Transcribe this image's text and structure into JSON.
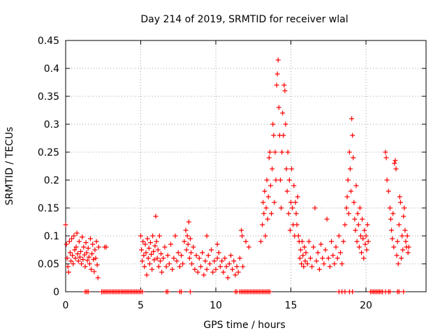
{
  "chart_data": {
    "type": "scatter",
    "title": "Day 214 of 2019, SRMTID for receiver wlal",
    "xlabel": "GPS time / hours",
    "ylabel": "SRMTID / TECUs",
    "xlim": [
      0,
      24
    ],
    "ylim": [
      0,
      0.45
    ],
    "grid": true,
    "marker": "+",
    "color": "#ff0000",
    "xticks": [
      0,
      5,
      10,
      15,
      20
    ],
    "xtick_labels": [
      "0",
      "5",
      "10",
      "15",
      "20"
    ],
    "yticks": [
      0,
      0.05,
      0.1,
      0.15,
      0.2,
      0.25,
      0.3,
      0.35,
      0.4,
      0.45
    ],
    "ytick_labels": [
      "0",
      "0.05",
      "0.1",
      "0.15",
      "0.2",
      "0.25",
      "0.3",
      "0.35",
      "0.4",
      "0.45"
    ],
    "series": [
      {
        "name": "SRMTID",
        "points": [
          [
            0.0,
            0.12
          ],
          [
            0.05,
            0.085
          ],
          [
            0.1,
            0.06
          ],
          [
            0.15,
            0.045
          ],
          [
            0.2,
            0.035
          ],
          [
            0.25,
            0.09
          ],
          [
            0.3,
            0.07
          ],
          [
            0.35,
            0.055
          ],
          [
            0.4,
            0.095
          ],
          [
            0.45,
            0.065
          ],
          [
            0.5,
            0.05
          ],
          [
            0.55,
            0.1
          ],
          [
            0.6,
            0.075
          ],
          [
            0.65,
            0.06
          ],
          [
            0.7,
            0.08
          ],
          [
            0.75,
            0.105
          ],
          [
            0.8,
            0.068
          ],
          [
            0.85,
            0.055
          ],
          [
            0.9,
            0.09
          ],
          [
            0.95,
            0.062
          ],
          [
            1.0,
            0.072
          ],
          [
            1.05,
            0.05
          ],
          [
            1.1,
            0.098
          ],
          [
            1.15,
            0.058
          ],
          [
            1.2,
            0.08
          ],
          [
            1.25,
            0.066
          ],
          [
            1.3,
            0.045
          ],
          [
            1.35,
            0.088
          ],
          [
            1.4,
            0.07
          ],
          [
            1.45,
            0.056
          ],
          [
            1.5,
            0.078
          ],
          [
            1.55,
            0.062
          ],
          [
            1.6,
            0.05
          ],
          [
            1.65,
            0.095
          ],
          [
            1.7,
            0.04
          ],
          [
            1.75,
            0.068
          ],
          [
            1.8,
            0.085
          ],
          [
            1.85,
            0.058
          ],
          [
            1.9,
            0.036
          ],
          [
            1.95,
            0.075
          ],
          [
            2.0,
            0.06
          ],
          [
            2.05,
            0.09
          ],
          [
            2.1,
            0.048
          ],
          [
            2.15,
            0.025
          ],
          [
            2.2,
            0.08
          ],
          [
            2.6,
            0.08
          ],
          [
            2.7,
            0.08
          ],
          [
            5.0,
            0.1
          ],
          [
            5.05,
            0.075
          ],
          [
            5.1,
            0.055
          ],
          [
            5.15,
            0.09
          ],
          [
            5.2,
            0.065
          ],
          [
            5.25,
            0.045
          ],
          [
            5.3,
            0.085
          ],
          [
            5.35,
            0.07
          ],
          [
            5.4,
            0.03
          ],
          [
            5.45,
            0.095
          ],
          [
            5.5,
            0.06
          ],
          [
            5.55,
            0.078
          ],
          [
            5.6,
            0.05
          ],
          [
            5.65,
            0.088
          ],
          [
            5.7,
            0.067
          ],
          [
            5.75,
            0.04
          ],
          [
            5.8,
            0.1
          ],
          [
            5.85,
            0.072
          ],
          [
            5.9,
            0.057
          ],
          [
            5.95,
            0.082
          ],
          [
            6.0,
            0.135
          ],
          [
            6.05,
            0.09
          ],
          [
            6.1,
            0.06
          ],
          [
            6.15,
            0.075
          ],
          [
            6.2,
            0.045
          ],
          [
            6.25,
            0.1
          ],
          [
            6.3,
            0.055
          ],
          [
            6.35,
            0.068
          ],
          [
            6.4,
            0.035
          ],
          [
            6.5,
            0.06
          ],
          [
            6.6,
            0.08
          ],
          [
            6.7,
            0.045
          ],
          [
            6.8,
            0.065
          ],
          [
            6.9,
            0.05
          ],
          [
            7.0,
            0.085
          ],
          [
            7.1,
            0.04
          ],
          [
            7.2,
            0.06
          ],
          [
            7.3,
            0.1
          ],
          [
            7.4,
            0.055
          ],
          [
            7.5,
            0.07
          ],
          [
            7.6,
            0.045
          ],
          [
            7.7,
            0.065
          ],
          [
            7.8,
            0.05
          ],
          [
            7.9,
            0.09
          ],
          [
            8.0,
            0.11
          ],
          [
            8.05,
            0.075
          ],
          [
            8.1,
            0.1
          ],
          [
            8.15,
            0.085
          ],
          [
            8.2,
            0.125
          ],
          [
            8.25,
            0.06
          ],
          [
            8.3,
            0.095
          ],
          [
            8.35,
            0.07
          ],
          [
            8.4,
            0.05
          ],
          [
            8.5,
            0.08
          ],
          [
            8.6,
            0.04
          ],
          [
            8.7,
            0.065
          ],
          [
            8.8,
            0.035
          ],
          [
            8.9,
            0.06
          ],
          [
            9.0,
            0.045
          ],
          [
            9.1,
            0.07
          ],
          [
            9.2,
            0.03
          ],
          [
            9.3,
            0.055
          ],
          [
            9.4,
            0.04
          ],
          [
            9.5,
            0.065
          ],
          [
            9.6,
            0.05
          ],
          [
            9.7,
            0.075
          ],
          [
            9.8,
            0.035
          ],
          [
            9.9,
            0.055
          ],
          [
            10.0,
            0.04
          ],
          [
            10.1,
            0.06
          ],
          [
            10.2,
            0.07
          ],
          [
            10.3,
            0.045
          ],
          [
            10.4,
            0.055
          ],
          [
            10.5,
            0.035
          ],
          [
            10.6,
            0.06
          ],
          [
            10.7,
            0.045
          ],
          [
            10.8,
            0.025
          ],
          [
            10.9,
            0.05
          ],
          [
            11.0,
            0.065
          ],
          [
            11.1,
            0.04
          ],
          [
            11.2,
            0.055
          ],
          [
            11.3,
            0.03
          ],
          [
            11.4,
            0.045
          ],
          [
            11.5,
            0.035
          ],
          [
            11.6,
            0.06
          ],
          [
            11.7,
            0.11
          ],
          [
            11.75,
            0.1
          ],
          [
            11.8,
            0.045
          ],
          [
            9.4,
            0.1
          ],
          [
            10.1,
            0.085
          ],
          [
            12.0,
            0.09
          ],
          [
            12.2,
            0.08
          ],
          [
            13.0,
            0.09
          ],
          [
            13.1,
            0.12
          ],
          [
            13.15,
            0.16
          ],
          [
            13.2,
            0.14
          ],
          [
            13.25,
            0.18
          ],
          [
            13.3,
            0.1
          ],
          [
            13.35,
            0.15
          ],
          [
            13.4,
            0.2
          ],
          [
            13.45,
            0.13
          ],
          [
            13.5,
            0.17
          ],
          [
            13.55,
            0.24
          ],
          [
            13.6,
            0.25
          ],
          [
            13.65,
            0.19
          ],
          [
            13.7,
            0.14
          ],
          [
            13.75,
            0.22
          ],
          [
            13.8,
            0.3
          ],
          [
            13.85,
            0.28
          ],
          [
            13.9,
            0.16
          ],
          [
            13.95,
            0.25
          ],
          [
            14.0,
            0.2
          ],
          [
            14.05,
            0.37
          ],
          [
            14.1,
            0.39
          ],
          [
            14.15,
            0.415
          ],
          [
            14.2,
            0.33
          ],
          [
            14.25,
            0.28
          ],
          [
            14.3,
            0.2
          ],
          [
            14.35,
            0.15
          ],
          [
            14.4,
            0.25
          ],
          [
            14.45,
            0.32
          ],
          [
            14.5,
            0.28
          ],
          [
            14.55,
            0.37
          ],
          [
            14.6,
            0.36
          ],
          [
            14.65,
            0.3
          ],
          [
            14.7,
            0.22
          ],
          [
            14.75,
            0.18
          ],
          [
            14.8,
            0.25
          ],
          [
            14.85,
            0.14
          ],
          [
            14.9,
            0.2
          ],
          [
            14.95,
            0.11
          ],
          [
            15.0,
            0.16
          ],
          [
            15.05,
            0.22
          ],
          [
            15.1,
            0.15
          ],
          [
            15.15,
            0.12
          ],
          [
            15.2,
            0.19
          ],
          [
            15.25,
            0.1
          ],
          [
            15.3,
            0.16
          ],
          [
            15.35,
            0.14
          ],
          [
            15.4,
            0.12
          ],
          [
            15.45,
            0.17
          ],
          [
            15.5,
            0.1
          ],
          [
            15.55,
            0.09
          ],
          [
            15.6,
            0.06
          ],
          [
            15.65,
            0.075
          ],
          [
            15.7,
            0.05
          ],
          [
            15.75,
            0.09
          ],
          [
            15.8,
            0.065
          ],
          [
            15.85,
            0.045
          ],
          [
            15.9,
            0.08
          ],
          [
            15.95,
            0.055
          ],
          [
            16.0,
            0.07
          ],
          [
            16.1,
            0.05
          ],
          [
            16.2,
            0.09
          ],
          [
            16.3,
            0.06
          ],
          [
            16.4,
            0.045
          ],
          [
            16.5,
            0.08
          ],
          [
            16.6,
            0.15
          ],
          [
            16.7,
            0.055
          ],
          [
            16.8,
            0.07
          ],
          [
            16.9,
            0.04
          ],
          [
            17.0,
            0.085
          ],
          [
            17.1,
            0.06
          ],
          [
            17.2,
            0.05
          ],
          [
            17.3,
            0.075
          ],
          [
            17.4,
            0.13
          ],
          [
            17.5,
            0.06
          ],
          [
            17.6,
            0.045
          ],
          [
            17.7,
            0.09
          ],
          [
            17.8,
            0.065
          ],
          [
            17.9,
            0.05
          ],
          [
            18.0,
            0.08
          ],
          [
            18.1,
            0.06
          ],
          [
            18.2,
            0.1
          ],
          [
            18.3,
            0.07
          ],
          [
            18.4,
            0.05
          ],
          [
            18.5,
            0.09
          ],
          [
            18.6,
            0.12
          ],
          [
            18.7,
            0.15
          ],
          [
            18.75,
            0.17
          ],
          [
            18.8,
            0.2
          ],
          [
            18.85,
            0.14
          ],
          [
            18.9,
            0.25
          ],
          [
            18.95,
            0.22
          ],
          [
            19.0,
            0.18
          ],
          [
            19.05,
            0.31
          ],
          [
            19.1,
            0.28
          ],
          [
            19.15,
            0.24
          ],
          [
            19.2,
            0.16
          ],
          [
            19.25,
            0.13
          ],
          [
            19.3,
            0.11
          ],
          [
            19.35,
            0.19
          ],
          [
            19.4,
            0.09
          ],
          [
            19.45,
            0.14
          ],
          [
            19.5,
            0.12
          ],
          [
            19.55,
            0.08
          ],
          [
            19.6,
            0.15
          ],
          [
            19.65,
            0.1
          ],
          [
            19.7,
            0.07
          ],
          [
            19.75,
            0.13
          ],
          [
            19.8,
            0.095
          ],
          [
            19.85,
            0.06
          ],
          [
            19.9,
            0.11
          ],
          [
            19.95,
            0.085
          ],
          [
            20.0,
            0.1
          ],
          [
            20.05,
            0.075
          ],
          [
            20.1,
            0.12
          ],
          [
            20.15,
            0.09
          ],
          [
            21.3,
            0.25
          ],
          [
            21.35,
            0.24
          ],
          [
            21.4,
            0.2
          ],
          [
            21.5,
            0.18
          ],
          [
            21.6,
            0.15
          ],
          [
            21.65,
            0.13
          ],
          [
            21.7,
            0.11
          ],
          [
            21.75,
            0.095
          ],
          [
            21.8,
            0.14
          ],
          [
            21.85,
            0.08
          ],
          [
            21.9,
            0.23
          ],
          [
            21.95,
            0.235
          ],
          [
            22.0,
            0.22
          ],
          [
            22.05,
            0.065
          ],
          [
            22.1,
            0.09
          ],
          [
            22.15,
            0.05
          ],
          [
            22.2,
            0.12
          ],
          [
            22.25,
            0.17
          ],
          [
            22.3,
            0.16
          ],
          [
            22.35,
            0.06
          ],
          [
            22.4,
            0.1
          ],
          [
            22.45,
            0.075
          ],
          [
            22.5,
            0.135
          ],
          [
            22.55,
            0.15
          ],
          [
            22.6,
            0.11
          ],
          [
            22.65,
            0.09
          ],
          [
            22.7,
            0.08
          ],
          [
            22.75,
            0.1
          ],
          [
            22.8,
            0.07
          ],
          [
            22.85,
            0.08
          ]
        ],
        "zero_points_x": [
          1.3,
          1.4,
          1.5,
          2.4,
          2.5,
          2.6,
          2.7,
          2.8,
          2.9,
          3.0,
          3.1,
          3.2,
          3.3,
          3.4,
          3.5,
          3.6,
          3.7,
          3.8,
          3.9,
          4.0,
          4.1,
          4.2,
          4.3,
          4.4,
          4.5,
          4.6,
          4.7,
          4.8,
          4.9,
          5.0,
          5.1,
          6.7,
          6.8,
          7.6,
          7.7,
          8.3,
          11.3,
          11.4,
          11.6,
          11.7,
          11.8,
          11.9,
          12.0,
          12.1,
          12.2,
          12.3,
          12.4,
          12.5,
          12.6,
          12.7,
          12.8,
          12.9,
          13.0,
          13.1,
          13.2,
          13.3,
          13.4,
          13.5,
          13.6,
          18.2,
          18.4,
          18.6,
          18.9,
          19.1,
          20.3,
          20.4,
          20.5,
          20.6,
          20.7,
          20.8,
          20.9,
          21.0,
          21.1,
          21.3,
          21.5,
          21.6,
          22.1,
          22.2,
          22.5
        ]
      }
    ]
  }
}
